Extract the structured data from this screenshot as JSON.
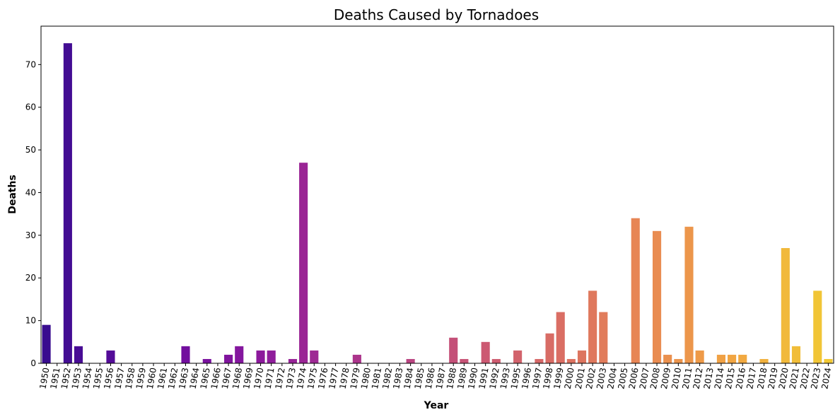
{
  "chart_data": {
    "type": "bar",
    "title": "Deaths Caused by Tornadoes",
    "xlabel": "Year",
    "ylabel": "Deaths",
    "ylim": [
      0,
      79
    ],
    "yticks": [
      0,
      10,
      20,
      30,
      40,
      50,
      60,
      70
    ],
    "grid": false,
    "colormap": "plasma",
    "categories": [
      "1950",
      "1951",
      "1952",
      "1953",
      "1954",
      "1955",
      "1956",
      "1957",
      "1958",
      "1959",
      "1960",
      "1961",
      "1962",
      "1963",
      "1964",
      "1965",
      "1966",
      "1967",
      "1968",
      "1969",
      "1970",
      "1971",
      "1972",
      "1973",
      "1974",
      "1975",
      "1976",
      "1977",
      "1978",
      "1979",
      "1980",
      "1981",
      "1982",
      "1983",
      "1984",
      "1985",
      "1986",
      "1987",
      "1988",
      "1989",
      "1990",
      "1991",
      "1992",
      "1993",
      "1995",
      "1996",
      "1997",
      "1998",
      "1999",
      "2000",
      "2001",
      "2002",
      "2003",
      "2004",
      "2005",
      "2006",
      "2007",
      "2008",
      "2009",
      "2010",
      "2011",
      "2012",
      "2013",
      "2014",
      "2015",
      "2016",
      "2017",
      "2018",
      "2019",
      "2020",
      "2021",
      "2022",
      "2023",
      "2024"
    ],
    "values": [
      9,
      0,
      75,
      4,
      0,
      0,
      3,
      0,
      0,
      0,
      0,
      0,
      0,
      4,
      0,
      1,
      0,
      2,
      4,
      0,
      3,
      3,
      0,
      1,
      47,
      3,
      0,
      0,
      0,
      2,
      0,
      0,
      0,
      0,
      1,
      0,
      0,
      0,
      6,
      1,
      0,
      5,
      1,
      0,
      3,
      0,
      1,
      7,
      12,
      1,
      3,
      17,
      12,
      0,
      0,
      34,
      0,
      31,
      2,
      1,
      32,
      3,
      0,
      2,
      2,
      2,
      0,
      1,
      0,
      27,
      4,
      0,
      17,
      1
    ]
  }
}
